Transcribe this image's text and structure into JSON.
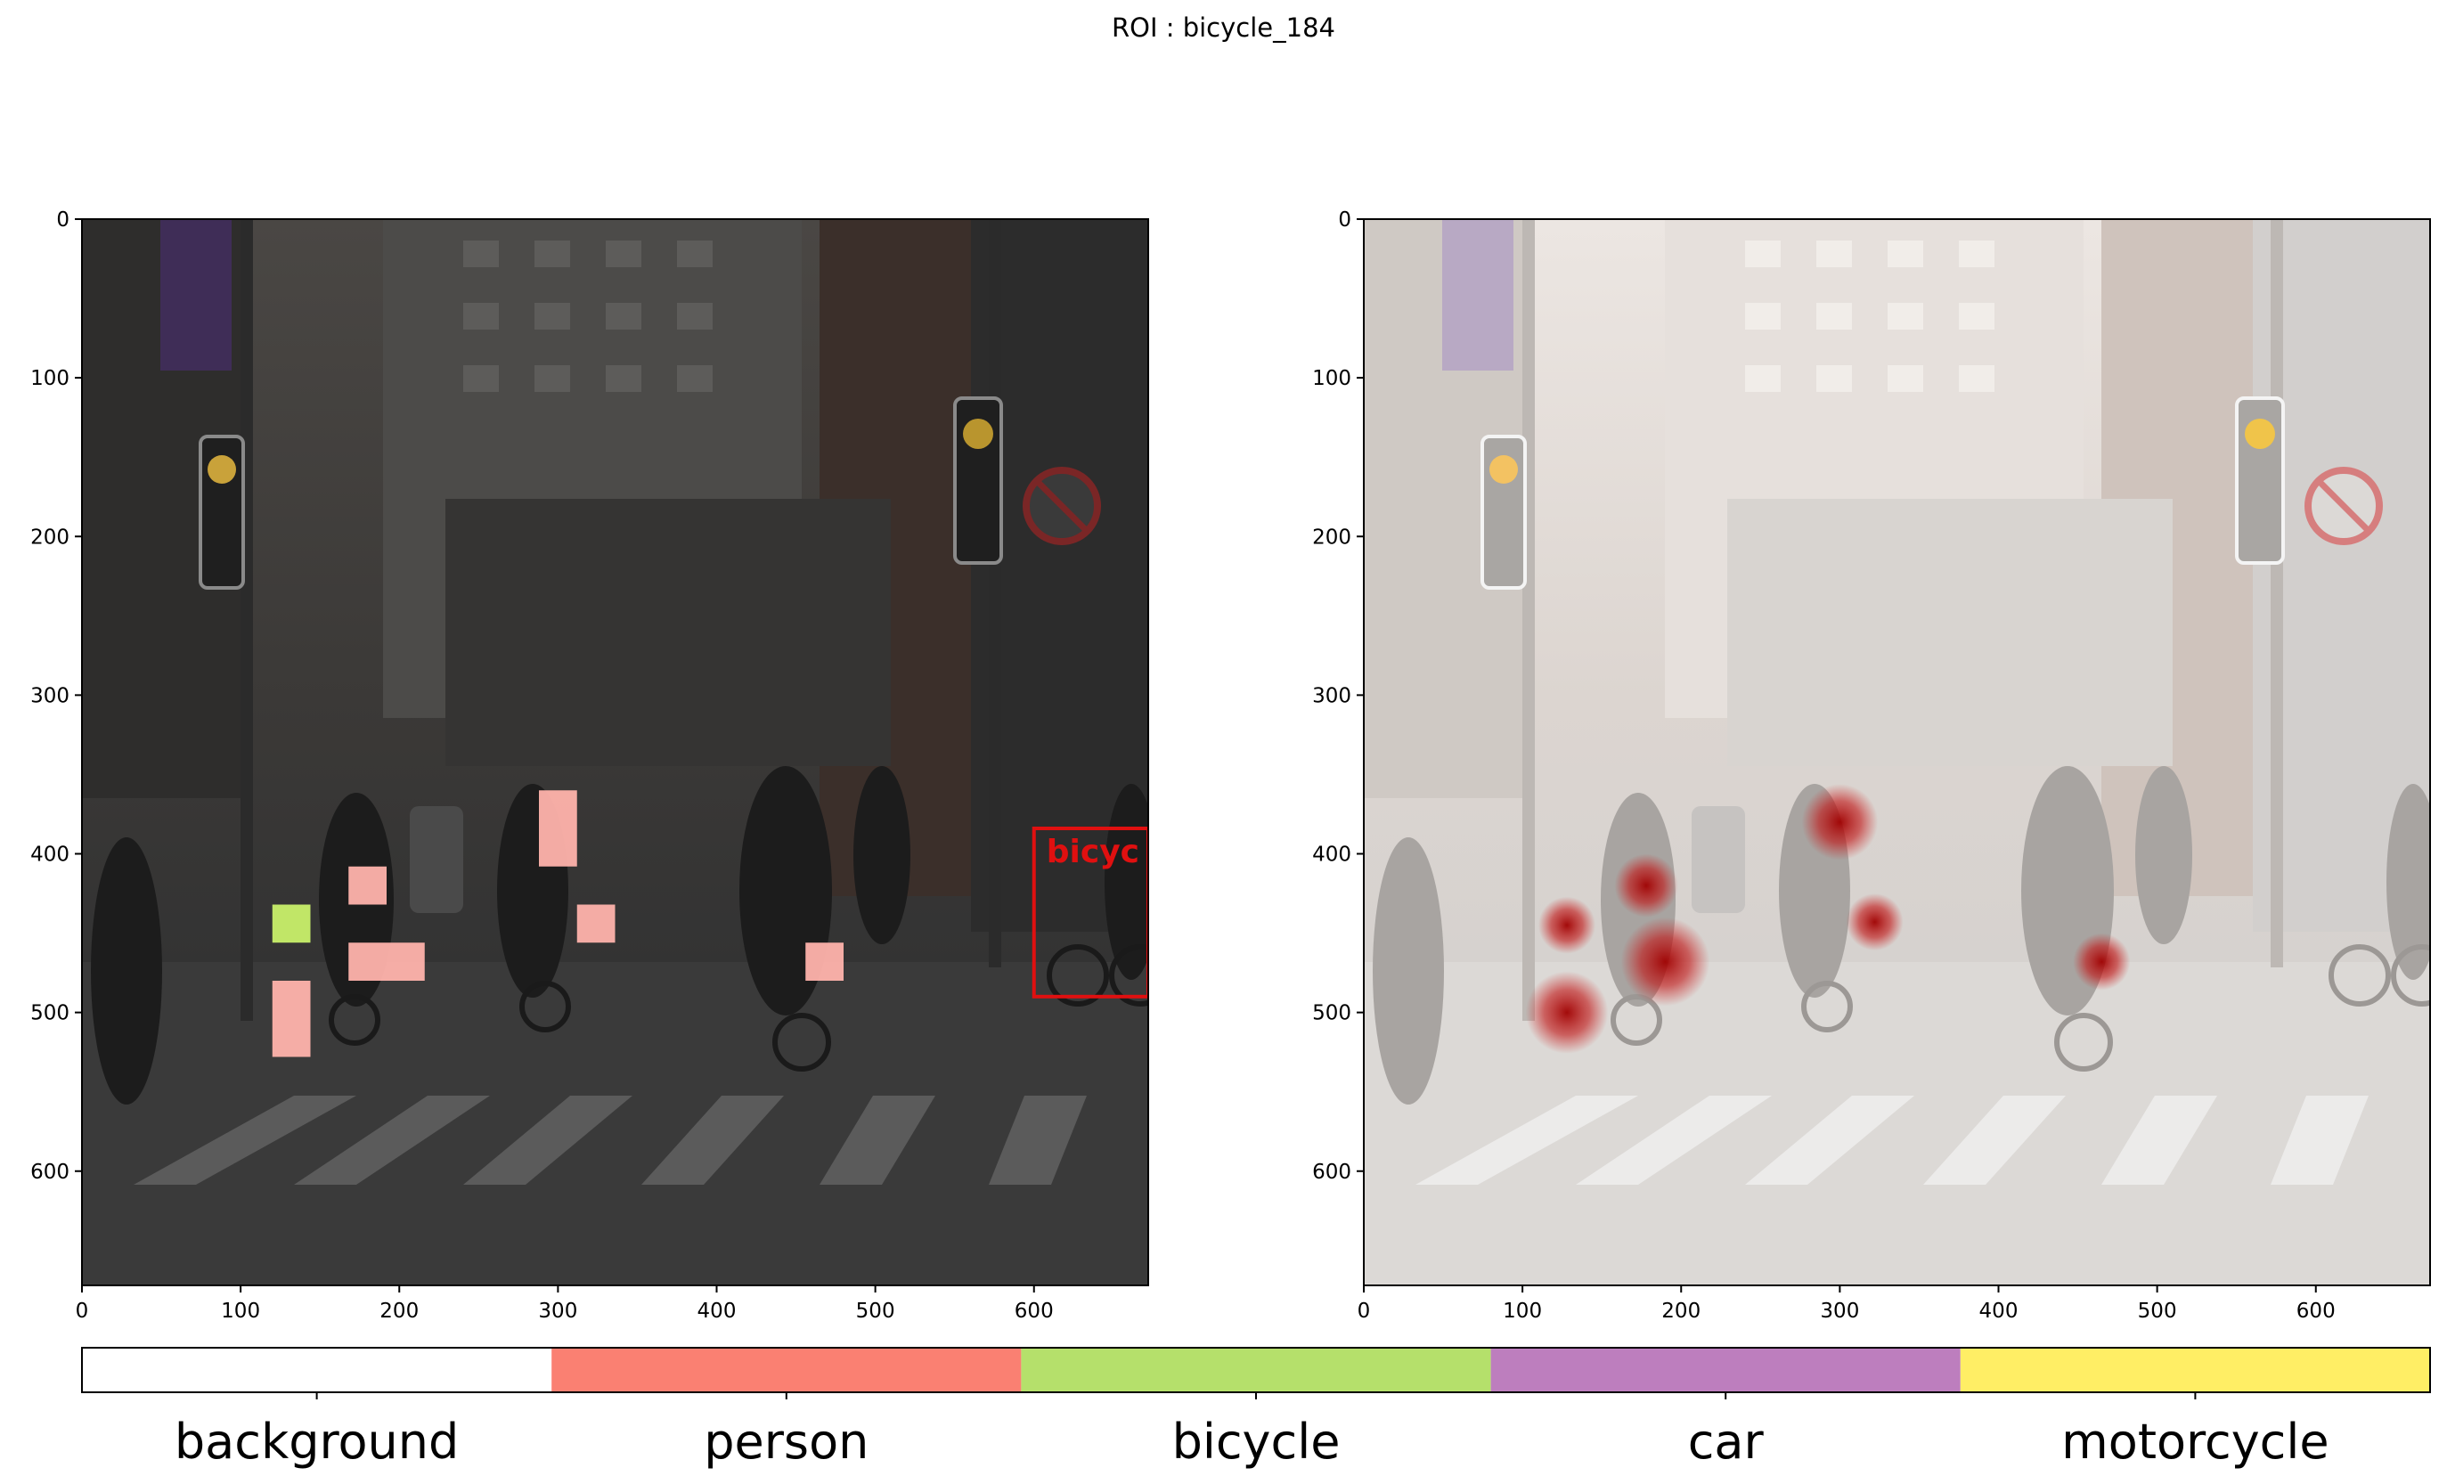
{
  "figure": {
    "title": "ROI : bicycle_184"
  },
  "panels": [
    {
      "name": "masked-patches",
      "xticks": [
        0,
        100,
        200,
        300,
        400,
        500,
        600
      ],
      "yticks": [
        0,
        100,
        200,
        300,
        400,
        500,
        600
      ],
      "xlim": [
        0,
        672
      ],
      "ylim": [
        672,
        0
      ],
      "box_label": "bicyc"
    },
    {
      "name": "attribution-heatmap",
      "xticks": [
        0,
        100,
        200,
        300,
        400,
        500,
        600
      ],
      "yticks": [
        0,
        100,
        200,
        300,
        400,
        500,
        600
      ],
      "xlim": [
        0,
        672
      ],
      "ylim": [
        672,
        0
      ]
    }
  ],
  "roi_box": {
    "x0": 600,
    "y0": 384,
    "x1": 672,
    "y1": 490,
    "color": "#e01010"
  },
  "patches": [
    {
      "x": 288,
      "y": 360,
      "w": 24,
      "h": 48,
      "cls": "person"
    },
    {
      "x": 168,
      "y": 408,
      "w": 24,
      "h": 24,
      "cls": "person"
    },
    {
      "x": 120,
      "y": 432,
      "w": 24,
      "h": 24,
      "cls": "bicycle"
    },
    {
      "x": 312,
      "y": 432,
      "w": 24,
      "h": 24,
      "cls": "person"
    },
    {
      "x": 168,
      "y": 456,
      "w": 48,
      "h": 24,
      "cls": "person"
    },
    {
      "x": 456,
      "y": 456,
      "w": 24,
      "h": 24,
      "cls": "person"
    },
    {
      "x": 120,
      "y": 480,
      "w": 24,
      "h": 48,
      "cls": "person"
    }
  ],
  "heat_spots": [
    {
      "x": 300,
      "y": 380,
      "r": 24
    },
    {
      "x": 178,
      "y": 420,
      "r": 20
    },
    {
      "x": 128,
      "y": 445,
      "r": 18
    },
    {
      "x": 322,
      "y": 443,
      "r": 18
    },
    {
      "x": 190,
      "y": 468,
      "r": 28
    },
    {
      "x": 465,
      "y": 468,
      "r": 18
    },
    {
      "x": 128,
      "y": 500,
      "r": 26
    }
  ],
  "legend": {
    "classes": [
      {
        "label": "background",
        "color": "#ffffff"
      },
      {
        "label": "person",
        "color": "#fa8072"
      },
      {
        "label": "bicycle",
        "color": "#b5e06b"
      },
      {
        "label": "car",
        "color": "#bd7ebe"
      },
      {
        "label": "motorcycle",
        "color": "#ffee65"
      }
    ]
  },
  "colors": {
    "street_dark": "#3a3a3a",
    "street_light": "#d9d4d0",
    "heat": "#b40000"
  }
}
